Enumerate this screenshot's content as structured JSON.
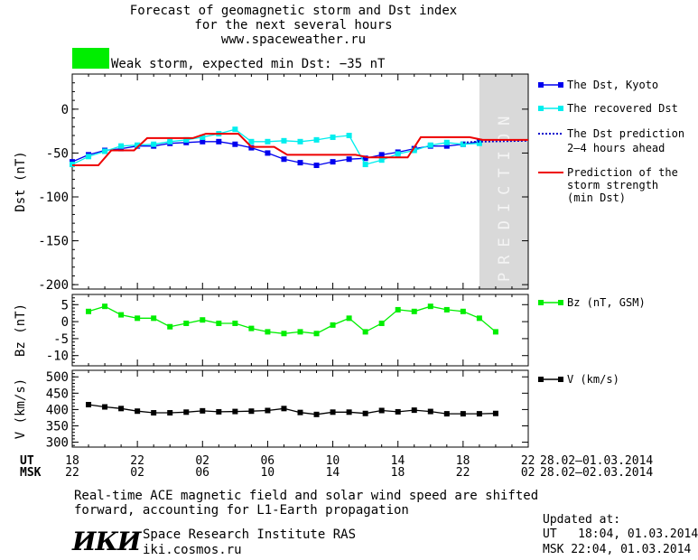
{
  "header": {
    "title_line1": "Forecast of geomagnetic storm and Dst index",
    "title_line2": "for the next several hours",
    "title_line3": "www.spaceweather.ru",
    "status_color": "#00ee00",
    "status_text": "Weak storm, expected min Dst: −35 nT"
  },
  "prediction_label": "PREDICTION",
  "legend": {
    "dst_kyoto": "The Dst, Kyoto",
    "recovered": "The recovered Dst",
    "prediction_line1": "The Dst prediction",
    "prediction_line2": "2–4 hours ahead",
    "storm_line1": "Prediction of the",
    "storm_line2": "storm strength",
    "storm_line3": "(min Dst)",
    "bz": "Bz (nT, GSM)",
    "v": "V (km/s)"
  },
  "time_axis": {
    "ut_label": "UT",
    "msk_label": "MSK",
    "ut_ticks": [
      "18",
      "22",
      "02",
      "06",
      "10",
      "14",
      "18",
      "22"
    ],
    "msk_ticks": [
      "22",
      "02",
      "06",
      "10",
      "14",
      "18",
      "22",
      "02"
    ],
    "ut_dates": "28.02–01.03.2014",
    "msk_dates": "28.02–02.03.2014"
  },
  "footer": {
    "note_line1": "Real-time ACE magnetic field and solar wind speed are shifted",
    "note_line2": "forward, accounting for L1-Earth propagation",
    "logo": "ИКИ",
    "institute": "Space Research Institute RAS",
    "website": "iki.cosmos.ru",
    "updated_label": "Updated at:",
    "updated_ut": "UT   18:04, 01.03.2014",
    "updated_msk": "MSK 22:04, 01.03.2014"
  },
  "chart_data": [
    {
      "type": "line",
      "ylabel": "Dst (nT)",
      "ylim": [
        -205,
        40
      ],
      "yticks": [
        0,
        -50,
        -100,
        -150,
        -200
      ],
      "xlim": [
        0,
        28
      ],
      "prediction_region": [
        25,
        28
      ],
      "series": [
        {
          "name": "The Dst, Kyoto",
          "color": "#0000ee",
          "markers": true,
          "x": [
            0,
            1,
            2,
            3,
            4,
            5,
            6,
            7,
            8,
            9,
            10,
            11,
            12,
            13,
            14,
            15,
            16,
            17,
            18,
            19,
            20,
            21,
            22,
            23,
            24,
            25
          ],
          "y": [
            -60,
            -52,
            -47,
            -45,
            -42,
            -42,
            -39,
            -38,
            -37,
            -37,
            -40,
            -44,
            -50,
            -57,
            -61,
            -64,
            -60,
            -57,
            -56,
            -52,
            -49,
            -45,
            -42,
            -42,
            -40,
            -37
          ]
        },
        {
          "name": "The recovered Dst",
          "color": "#00eeee",
          "markers": true,
          "x": [
            0,
            1,
            2,
            3,
            4,
            5,
            6,
            7,
            8,
            9,
            10,
            11,
            12,
            13,
            14,
            15,
            16,
            17,
            18,
            19,
            20,
            21,
            22,
            23,
            24,
            25
          ],
          "y": [
            -63,
            -54,
            -48,
            -42,
            -41,
            -40,
            -37,
            -35,
            -32,
            -28,
            -23,
            -37,
            -37,
            -36,
            -37,
            -35,
            -32,
            -30,
            -63,
            -58,
            -51,
            -47,
            -41,
            -38,
            -40,
            -39
          ]
        },
        {
          "name": "The Dst prediction 2–4 hours ahead",
          "color": "#0000cc",
          "dashed": true,
          "x": [
            24,
            25,
            28
          ],
          "y": [
            -38,
            -37,
            -36
          ]
        },
        {
          "name": "Prediction of the storm strength (min Dst)",
          "color": "#ee0000",
          "step": true,
          "x": [
            0,
            1.6,
            2.4,
            3.8,
            4.6,
            7.4,
            8.2,
            10.2,
            11,
            12.4,
            13.2,
            17.4,
            18.2,
            19,
            19.8,
            20.6,
            21.4,
            24.4,
            25.2,
            28
          ],
          "y": [
            -64,
            -64,
            -47,
            -47,
            -33,
            -33,
            -28,
            -28,
            -43,
            -43,
            -52,
            -52,
            -55,
            -55,
            -55,
            -55,
            -32,
            -32,
            -35,
            -35
          ]
        }
      ]
    },
    {
      "type": "line",
      "ylabel": "Bz (nT)",
      "ylim": [
        -13,
        8
      ],
      "yticks": [
        5,
        0,
        -5,
        -10
      ],
      "xlim": [
        0,
        28
      ],
      "series": [
        {
          "name": "Bz (nT, GSM)",
          "color": "#00ee00",
          "markers": true,
          "x": [
            1,
            2,
            3,
            4,
            5,
            6,
            7,
            8,
            9,
            10,
            11,
            12,
            13,
            14,
            15,
            16,
            17,
            18,
            19,
            20,
            21,
            22,
            23,
            24,
            25,
            26
          ],
          "y": [
            3,
            4.5,
            2,
            1,
            1,
            -1.5,
            -0.5,
            0.5,
            -0.5,
            -0.5,
            -2,
            -3,
            -3.5,
            -3,
            -3.5,
            -1,
            1,
            -3,
            -0.5,
            3.5,
            3,
            4.5,
            3.5,
            3,
            1,
            -3
          ]
        }
      ]
    },
    {
      "type": "line",
      "ylabel": "V (km/s)",
      "ylim": [
        285,
        520
      ],
      "yticks": [
        500,
        450,
        400,
        350,
        300
      ],
      "xlim": [
        0,
        28
      ],
      "series": [
        {
          "name": "V (km/s)",
          "color": "#000000",
          "markers": true,
          "x": [
            1,
            2,
            3,
            4,
            5,
            6,
            7,
            8,
            9,
            10,
            11,
            12,
            13,
            14,
            15,
            16,
            17,
            18,
            19,
            20,
            21,
            22,
            23,
            24,
            25,
            26
          ],
          "y": [
            415,
            408,
            403,
            395,
            390,
            390,
            392,
            396,
            393,
            394,
            395,
            397,
            403,
            391,
            385,
            392,
            392,
            388,
            397,
            393,
            398,
            394,
            387,
            387,
            387,
            388
          ]
        }
      ]
    }
  ]
}
